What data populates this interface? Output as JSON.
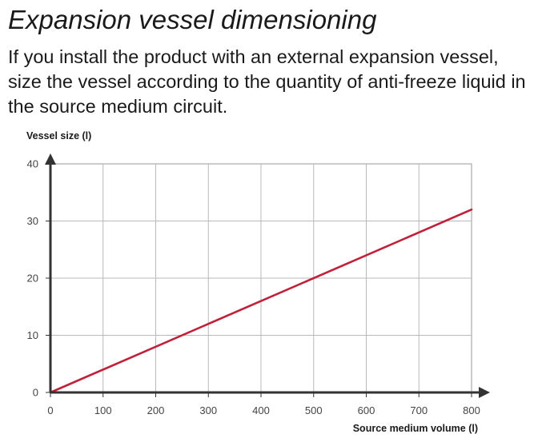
{
  "page": {
    "title": "Expansion vessel dimensioning",
    "intro": "If you install the product with an external expansion vessel, size the vessel according to the quantity of anti-freeze liquid in the source medium circuit."
  },
  "chart_data": {
    "type": "line",
    "title": "",
    "xlabel": "Source medium volume (l)",
    "ylabel": "Vessel size (l)",
    "xlim": [
      0,
      800
    ],
    "ylim": [
      0,
      40
    ],
    "x_ticks": [
      0,
      100,
      200,
      300,
      400,
      500,
      600,
      700,
      800
    ],
    "y_ticks": [
      0,
      10,
      20,
      30,
      40
    ],
    "grid": true,
    "series": [
      {
        "x": [
          0,
          800
        ],
        "values": [
          0,
          32
        ],
        "color": "#c0213a"
      }
    ],
    "colors": {
      "axis": "#333333",
      "grid": "#b8b8b8",
      "frame": "#9a9a9a",
      "line": "#c0213a"
    }
  }
}
